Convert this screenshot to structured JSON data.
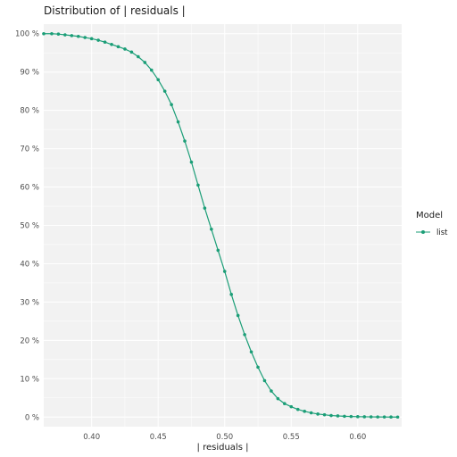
{
  "chart_data": {
    "type": "line",
    "title": "Distribution of | residuals |",
    "xlabel": "| residuals |",
    "ylabel": "",
    "xlim": [
      0.364,
      0.633
    ],
    "ylim": [
      -0.025,
      1.025
    ],
    "x_ticks": [
      0.4,
      0.45,
      0.5,
      0.55,
      0.6
    ],
    "x_tick_labels": [
      "0.40",
      "0.45",
      "0.50",
      "0.55",
      "0.60"
    ],
    "y_ticks": [
      0,
      0.1,
      0.2,
      0.3,
      0.4,
      0.5,
      0.6,
      0.7,
      0.8,
      0.9,
      1.0
    ],
    "y_tick_labels": [
      "0 %",
      "10 %",
      "20 %",
      "30 %",
      "40 %",
      "50 %",
      "60 %",
      "70 %",
      "80 %",
      "90 %",
      "100 %"
    ],
    "grid": true,
    "legend": {
      "title": "Model",
      "placement": "right"
    },
    "series": [
      {
        "name": "list",
        "color": "#1b9e77",
        "x": [
          0.364,
          0.37,
          0.375,
          0.38,
          0.385,
          0.39,
          0.395,
          0.4,
          0.405,
          0.41,
          0.415,
          0.42,
          0.425,
          0.43,
          0.435,
          0.44,
          0.445,
          0.45,
          0.455,
          0.46,
          0.465,
          0.47,
          0.475,
          0.48,
          0.485,
          0.49,
          0.495,
          0.5,
          0.505,
          0.51,
          0.515,
          0.52,
          0.525,
          0.53,
          0.535,
          0.54,
          0.545,
          0.55,
          0.555,
          0.56,
          0.565,
          0.57,
          0.575,
          0.58,
          0.585,
          0.59,
          0.595,
          0.6,
          0.605,
          0.61,
          0.615,
          0.62,
          0.625,
          0.63
        ],
        "y": [
          1.0,
          1.0,
          0.999,
          0.997,
          0.995,
          0.993,
          0.99,
          0.987,
          0.983,
          0.978,
          0.972,
          0.966,
          0.96,
          0.952,
          0.94,
          0.925,
          0.905,
          0.88,
          0.85,
          0.815,
          0.77,
          0.72,
          0.665,
          0.605,
          0.545,
          0.49,
          0.435,
          0.38,
          0.32,
          0.265,
          0.215,
          0.17,
          0.13,
          0.095,
          0.068,
          0.048,
          0.035,
          0.027,
          0.02,
          0.015,
          0.011,
          0.008,
          0.006,
          0.004,
          0.003,
          0.002,
          0.0015,
          0.001,
          0.0007,
          0.0005,
          0.0003,
          0.0002,
          0.0001,
          0.0
        ]
      }
    ]
  }
}
